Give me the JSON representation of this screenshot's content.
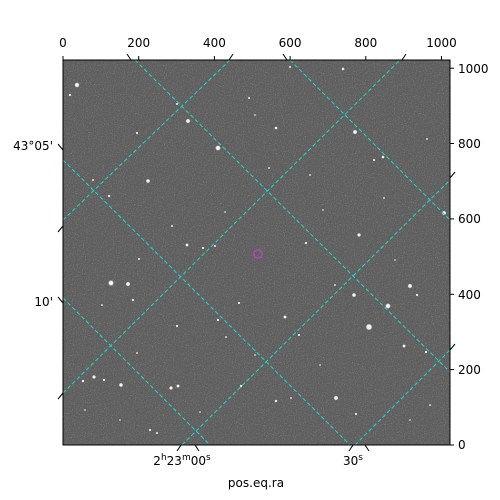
{
  "figure": {
    "x_axis_title": "pos.eq.ra",
    "ra_labels": {
      "ra_hours": "2",
      "h": "h",
      "ra_minutes": "23",
      "m": "m",
      "ra_seconds": "00",
      "s": "s",
      "ra_30_value": "30",
      "ra_30_unit": "s"
    },
    "dec_labels": [
      "43°05'",
      "10'"
    ],
    "pixel_axis_top": [
      "0",
      "200",
      "400",
      "600",
      "800",
      "1000"
    ],
    "pixel_axis_right": [
      "0",
      "200",
      "400",
      "600",
      "800",
      "1000"
    ],
    "colors": {
      "grid": "#22d3cf",
      "marker": "#c040c0",
      "sky": "#5f5f5f",
      "frame": "#000000"
    },
    "marker_icon": "circle-marker-icon"
  }
}
